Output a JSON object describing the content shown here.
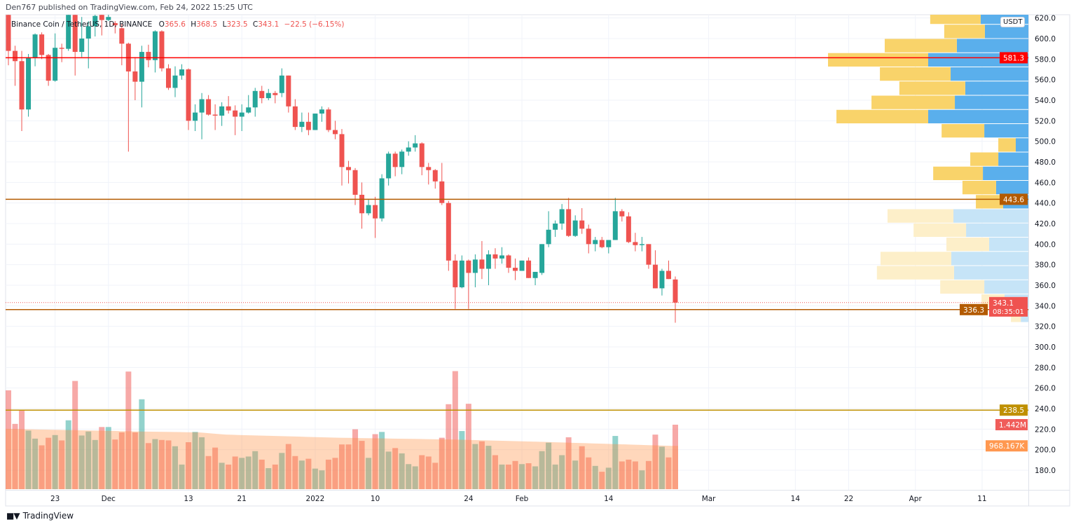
{
  "attribution": "Den767 published on TradingView.com, Feb 24, 2022 15:25 UTC",
  "legend": {
    "symbol": "Binance Coin / TetherUS, 1D, BINANCE",
    "o_label": "O",
    "o": "365.6",
    "h_label": "H",
    "h": "368.5",
    "l_label": "L",
    "l": "323.5",
    "c_label": "C",
    "c": "343.1",
    "change": "−22.5 (−6.15%)"
  },
  "currency_badge": "USDT",
  "footer": {
    "logo_text": "TradingView",
    "logo_mark": "TV"
  },
  "colors": {
    "up": "#26a69a",
    "down": "#ef5350",
    "vp_up": "#5aafec",
    "vp_down": "#f9d36a",
    "vp_up_light": "#c6e4f7",
    "vp_down_light": "#fdefc9",
    "volume_ma": "#ff9850"
  },
  "chart_data": {
    "type": "candlestick",
    "interval": "1D",
    "grid": true,
    "price_axis": {
      "ticks": [
        "620.0",
        "600.0",
        "580.0",
        "560.0",
        "540.0",
        "520.0",
        "500.0",
        "480.0",
        "460.0",
        "440.0",
        "420.0",
        "400.0",
        "380.0",
        "360.0",
        "340.0",
        "320.0",
        "300.0",
        "280.0",
        "260.0",
        "240.0",
        "220.0",
        "200.0",
        "180.0"
      ]
    },
    "time_axis": {
      "ticks": [
        {
          "label": "23",
          "date": "2021-11-23"
        },
        {
          "label": "Dec",
          "date": "2021-12-01"
        },
        {
          "label": "13",
          "date": "2021-12-13"
        },
        {
          "label": "21",
          "date": "2021-12-21"
        },
        {
          "label": "2022",
          "date": "2022-01-01"
        },
        {
          "label": "10",
          "date": "2022-01-10"
        },
        {
          "label": "24",
          "date": "2022-01-24"
        },
        {
          "label": "Feb",
          "date": "2022-02-01"
        },
        {
          "label": "14",
          "date": "2022-02-14"
        },
        {
          "label": "Mar",
          "date": "2022-03-01"
        },
        {
          "label": "14",
          "date": "2022-03-14"
        },
        {
          "label": "22",
          "date": "2022-03-22"
        },
        {
          "label": "Apr",
          "date": "2022-04-01"
        },
        {
          "label": "11",
          "date": "2022-04-11"
        }
      ]
    },
    "candle_fields": [
      "date",
      "open",
      "high",
      "low",
      "close",
      "volume_millions"
    ],
    "candles": [
      [
        "2021-11-16",
        623,
        625,
        574,
        588,
        2.21
      ],
      [
        "2021-11-17",
        588,
        593,
        554,
        578,
        1.46
      ],
      [
        "2021-11-18",
        578,
        588,
        510,
        531,
        1.76
      ],
      [
        "2021-11-19",
        531,
        585,
        524,
        581,
        1.31
      ],
      [
        "2021-11-20",
        581,
        605,
        573,
        604,
        1.13
      ],
      [
        "2021-11-21",
        604,
        606,
        580,
        584,
        0.98
      ],
      [
        "2021-11-22",
        584,
        585,
        554,
        559,
        1.15
      ],
      [
        "2021-11-23",
        559,
        605,
        558,
        591,
        1.21
      ],
      [
        "2021-11-24",
        591,
        595,
        577,
        590,
        1.09
      ],
      [
        "2021-11-25",
        590,
        625,
        588,
        623,
        1.54
      ],
      [
        "2021-11-26",
        623,
        625,
        564,
        587,
        2.42
      ],
      [
        "2021-11-27",
        587,
        621,
        582,
        600,
        1.2
      ],
      [
        "2021-11-28",
        600,
        617,
        571,
        612,
        1.29
      ],
      [
        "2021-11-29",
        612,
        625,
        602,
        622,
        1.1
      ],
      [
        "2021-11-30",
        623,
        627,
        603,
        618,
        1.39
      ],
      [
        "2021-12-01",
        618,
        624,
        617,
        621,
        1.39
      ],
      [
        "2021-12-02",
        615,
        617,
        605,
        613,
        1.11
      ],
      [
        "2021-12-03",
        610,
        614,
        574,
        595,
        1.27
      ],
      [
        "2021-12-04",
        595,
        596,
        490,
        568,
        2.63
      ],
      [
        "2021-12-05",
        568,
        582,
        540,
        558,
        1.27
      ],
      [
        "2021-12-06",
        558,
        593,
        533,
        587,
        2.01
      ],
      [
        "2021-12-07",
        587,
        594,
        572,
        579,
        1.03
      ],
      [
        "2021-12-08",
        579,
        608,
        567,
        607,
        1.12
      ],
      [
        "2021-12-09",
        607,
        608,
        568,
        571,
        1.1
      ],
      [
        "2021-12-10",
        571,
        575,
        550,
        552,
        1.09
      ],
      [
        "2021-12-11",
        552,
        573,
        543,
        564,
        0.96
      ],
      [
        "2021-12-12",
        564,
        575,
        560,
        570,
        0.55
      ],
      [
        "2021-12-13",
        570,
        571,
        511,
        520,
        1.05
      ],
      [
        "2021-12-14",
        520,
        536,
        510,
        528,
        1.28
      ],
      [
        "2021-12-15",
        528,
        547,
        502,
        541,
        1.16
      ],
      [
        "2021-12-16",
        541,
        545,
        525,
        526,
        0.74
      ],
      [
        "2021-12-17",
        526,
        536,
        511,
        525,
        0.93
      ],
      [
        "2021-12-18",
        525,
        538,
        515,
        534,
        0.59
      ],
      [
        "2021-12-19",
        534,
        544,
        527,
        530,
        0.55
      ],
      [
        "2021-12-20",
        530,
        535,
        506,
        524,
        0.73
      ],
      [
        "2021-12-21",
        524,
        536,
        510,
        528,
        0.7
      ],
      [
        "2021-12-22",
        528,
        545,
        527,
        533,
        0.73
      ],
      [
        "2021-12-23",
        533,
        552,
        524,
        549,
        0.85
      ],
      [
        "2021-12-24",
        549,
        554,
        537,
        542,
        0.66
      ],
      [
        "2021-12-25",
        542,
        551,
        540,
        547,
        0.47
      ],
      [
        "2021-12-26",
        547,
        549,
        537,
        545,
        0.55
      ],
      [
        "2021-12-27",
        547,
        571,
        543,
        564,
        0.81
      ],
      [
        "2021-12-28",
        564,
        564,
        528,
        534,
        1.01
      ],
      [
        "2021-12-29",
        534,
        541,
        511,
        514,
        0.74
      ],
      [
        "2021-12-30",
        514,
        528,
        509,
        519,
        0.64
      ],
      [
        "2021-12-31",
        519,
        528,
        506,
        511,
        0.68
      ],
      [
        "2022-01-01",
        511,
        527,
        511,
        527,
        0.46
      ],
      [
        "2022-01-02",
        527,
        534,
        519,
        531,
        0.42
      ],
      [
        "2022-01-03",
        531,
        533,
        509,
        511,
        0.66
      ],
      [
        "2022-01-04",
        511,
        520,
        502,
        507,
        0.7
      ],
      [
        "2022-01-05",
        507,
        512,
        457,
        475,
        1.0
      ],
      [
        "2022-01-06",
        475,
        481,
        459,
        472,
        1.0
      ],
      [
        "2022-01-07",
        472,
        474,
        438,
        448,
        1.34
      ],
      [
        "2022-01-08",
        448,
        460,
        415,
        430,
        1.08
      ],
      [
        "2022-01-09",
        430,
        444,
        428,
        438,
        0.7
      ],
      [
        "2022-01-10",
        438,
        446,
        406,
        425,
        1.23
      ],
      [
        "2022-01-11",
        425,
        468,
        422,
        464,
        1.28
      ],
      [
        "2022-01-12",
        464,
        490,
        457,
        488,
        0.84
      ],
      [
        "2022-01-13",
        488,
        490,
        466,
        475,
        0.92
      ],
      [
        "2022-01-14",
        475,
        492,
        468,
        490,
        0.8
      ],
      [
        "2022-01-15",
        490,
        500,
        486,
        494,
        0.56
      ],
      [
        "2022-01-16",
        494,
        506,
        490,
        498,
        0.51
      ],
      [
        "2022-01-17",
        498,
        499,
        467,
        475,
        0.76
      ],
      [
        "2022-01-18",
        475,
        479,
        458,
        472,
        0.73
      ],
      [
        "2022-01-19",
        472,
        473,
        454,
        461,
        0.59
      ],
      [
        "2022-01-20",
        461,
        479,
        438,
        440,
        1.15
      ],
      [
        "2022-01-21",
        440,
        442,
        374,
        384,
        1.9
      ],
      [
        "2022-01-22",
        384,
        390,
        337,
        358,
        2.64
      ],
      [
        "2022-01-23",
        358,
        389,
        357,
        384,
        1.3
      ],
      [
        "2022-01-24",
        384,
        385,
        337,
        372,
        1.91
      ],
      [
        "2022-01-25",
        372,
        390,
        358,
        385,
        1.01
      ],
      [
        "2022-01-26",
        385,
        403,
        366,
        376,
        1.07
      ],
      [
        "2022-01-27",
        376,
        394,
        360,
        390,
        0.97
      ],
      [
        "2022-01-28",
        390,
        396,
        376,
        386,
        0.76
      ],
      [
        "2022-01-29",
        386,
        397,
        381,
        389,
        0.55
      ],
      [
        "2022-01-30",
        389,
        390,
        372,
        377,
        0.55
      ],
      [
        "2022-01-31",
        377,
        386,
        365,
        374,
        0.63
      ],
      [
        "2022-02-01",
        374,
        384,
        374,
        384,
        0.56
      ],
      [
        "2022-02-02",
        384,
        387,
        367,
        367,
        0.58
      ],
      [
        "2022-02-03",
        367,
        373,
        360,
        373,
        0.51
      ],
      [
        "2022-02-04",
        372,
        400,
        370,
        400,
        0.85
      ],
      [
        "2022-02-05",
        400,
        432,
        397,
        414,
        1.04
      ],
      [
        "2022-02-06",
        414,
        423,
        407,
        420,
        0.55
      ],
      [
        "2022-02-07",
        420,
        439,
        414,
        434,
        0.76
      ],
      [
        "2022-02-08",
        434,
        445,
        407,
        408,
        1.16
      ],
      [
        "2022-02-09",
        408,
        428,
        407,
        423,
        0.64
      ],
      [
        "2022-02-10",
        423,
        435,
        410,
        415,
        0.96
      ],
      [
        "2022-02-11",
        415,
        419,
        391,
        400,
        0.71
      ],
      [
        "2022-02-12",
        400,
        407,
        393,
        404,
        0.52
      ],
      [
        "2022-02-13",
        404,
        407,
        396,
        397,
        0.39
      ],
      [
        "2022-02-14",
        397,
        404,
        391,
        404,
        0.48
      ],
      [
        "2022-02-15",
        404,
        445,
        404,
        432,
        1.19
      ],
      [
        "2022-02-16",
        432,
        434,
        422,
        427,
        0.62
      ],
      [
        "2022-02-17",
        427,
        431,
        401,
        402,
        0.66
      ],
      [
        "2022-02-18",
        402,
        411,
        393,
        399,
        0.62
      ],
      [
        "2022-02-19",
        399,
        407,
        393,
        400,
        0.42
      ],
      [
        "2022-02-20",
        400,
        400,
        376,
        380,
        0.63
      ],
      [
        "2022-02-21",
        380,
        394,
        357,
        357,
        1.22
      ],
      [
        "2022-02-22",
        357,
        376,
        350,
        374,
        0.95
      ],
      [
        "2022-02-23",
        374,
        384,
        366,
        366,
        0.71
      ],
      [
        "2022-02-24",
        365.6,
        368.5,
        323.5,
        343.1,
        1.442
      ]
    ],
    "volume_ma_millions": [
      [
        "2021-11-16",
        1.35
      ],
      [
        "2021-11-26",
        1.32
      ],
      [
        "2021-12-06",
        1.29
      ],
      [
        "2021-12-15",
        1.27
      ],
      [
        "2021-12-19",
        1.22
      ],
      [
        "2022-01-05",
        1.15
      ],
      [
        "2022-01-22",
        1.11
      ],
      [
        "2022-02-04",
        1.06
      ],
      [
        "2022-02-24",
        0.968
      ]
    ],
    "horizontal_lines": [
      {
        "price": 581.3,
        "label": "581.3",
        "color": "#ff0000"
      },
      {
        "price": 443.6,
        "label": "443.6",
        "color": "#b35a00"
      },
      {
        "price": 336.3,
        "label": "336.3",
        "color": "#b35a00"
      },
      {
        "price": 238.5,
        "label": "238.5",
        "color": "#bf9000"
      }
    ],
    "last_price": {
      "price": 343.1,
      "label": "343.1",
      "countdown": "08:35:01",
      "color": "#ef5350"
    },
    "volume_badges": [
      {
        "value_millions": 1.442,
        "label": "1.442M",
        "color": "#f05d5a"
      },
      {
        "value_millions": 0.968167,
        "label": "968.167K",
        "color": "#ff9850"
      }
    ],
    "volume_profile": {
      "price_range": [
        323.5,
        627.3
      ],
      "scale": "percent of largest row",
      "rows": [
        {
          "up": 23.8,
          "down": 25.2,
          "value_area": true
        },
        {
          "up": 21.7,
          "down": 20.3,
          "value_area": true
        },
        {
          "up": 35.7,
          "down": 36.0,
          "value_area": true
        },
        {
          "up": 50.0,
          "down": 50.0,
          "value_area": true
        },
        {
          "up": 38.8,
          "down": 35.3,
          "value_area": true
        },
        {
          "up": 31.5,
          "down": 32.9,
          "value_area": true
        },
        {
          "up": 36.7,
          "down": 41.6,
          "value_area": true
        },
        {
          "up": 50.0,
          "down": 45.8,
          "value_area": true
        },
        {
          "up": 22.0,
          "down": 21.3,
          "value_area": true
        },
        {
          "up": 6.3,
          "down": 8.7,
          "value_area": true
        },
        {
          "up": 15.0,
          "down": 14.0,
          "value_area": true
        },
        {
          "up": 22.7,
          "down": 24.8,
          "value_area": true
        },
        {
          "up": 16.1,
          "down": 16.8,
          "value_area": true
        },
        {
          "up": 12.6,
          "down": 13.6,
          "value_area": true
        },
        {
          "up": 37.4,
          "down": 32.9,
          "value_area": false
        },
        {
          "up": 31.1,
          "down": 26.2,
          "value_area": false
        },
        {
          "up": 19.6,
          "down": 21.3,
          "value_area": false
        },
        {
          "up": 38.5,
          "down": 35.3,
          "value_area": false
        },
        {
          "up": 37.1,
          "down": 38.5,
          "value_area": false
        },
        {
          "up": 22.0,
          "down": 22.0,
          "value_area": false
        },
        {
          "up": 11.9,
          "down": 11.5,
          "value_area": false
        },
        {
          "up": 3.8,
          "down": 4.9,
          "value_area": false
        }
      ]
    }
  }
}
